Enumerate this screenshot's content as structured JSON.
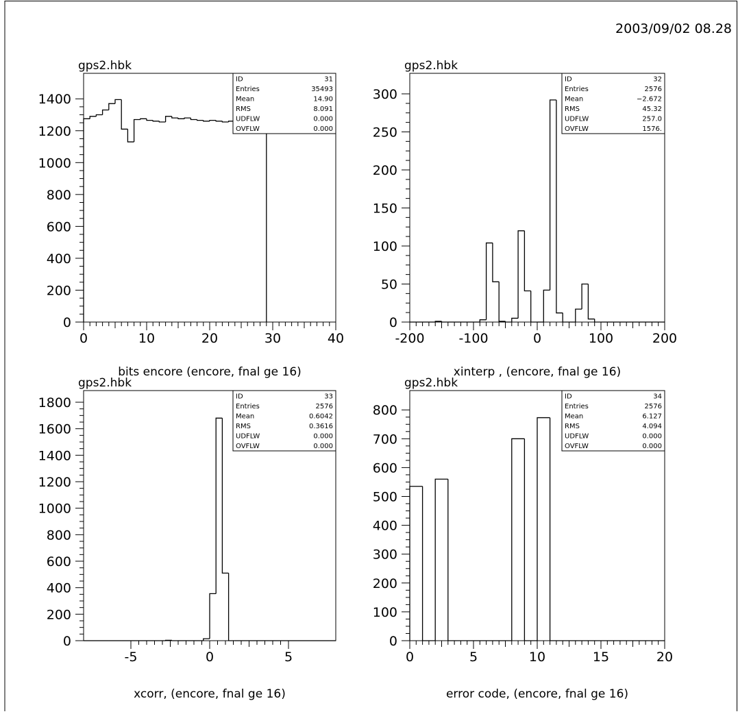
{
  "date": "2003/09/02  08.28",
  "chart_data": [
    {
      "type": "histogram",
      "title": "gps2.hbk",
      "xlabel": "bits  encore (encore, fnal ge 16)",
      "bins": [
        0,
        1,
        2,
        3,
        4,
        5,
        6,
        7,
        8,
        9,
        10,
        11,
        12,
        13,
        14,
        15,
        16,
        17,
        18,
        19,
        20,
        21,
        22,
        23,
        24,
        25,
        26,
        27,
        28,
        29
      ],
      "values": [
        1275,
        1290,
        1300,
        1330,
        1370,
        1395,
        1210,
        1130,
        1270,
        1275,
        1265,
        1260,
        1255,
        1290,
        1280,
        1275,
        1280,
        1270,
        1265,
        1260,
        1265,
        1260,
        1255,
        1260,
        1255,
        1250,
        1260,
        1255,
        1250
      ],
      "xlim": [
        0,
        40
      ],
      "ylim": [
        0,
        1560
      ],
      "xticks": [
        0,
        10,
        20,
        30,
        40
      ],
      "yticks": [
        0,
        200,
        400,
        600,
        800,
        1000,
        1200,
        1400
      ],
      "stats": [
        [
          "ID",
          "31"
        ],
        [
          "Entries",
          "35493"
        ],
        [
          "Mean",
          "14.90"
        ],
        [
          "RMS",
          "8.091"
        ],
        [
          "UDFLW",
          "0.000"
        ],
        [
          "OVFLW",
          "0.000"
        ]
      ]
    },
    {
      "type": "histogram",
      "title": "gps2.hbk",
      "xlabel": "xinterp , (encore, fnal ge 16)",
      "bins": [
        -200,
        -190,
        -180,
        -170,
        -160,
        -150,
        -140,
        -130,
        -120,
        -110,
        -100,
        -90,
        -80,
        -70,
        -60,
        -50,
        -40,
        -30,
        -20,
        -10,
        0,
        10,
        20,
        30,
        40,
        50,
        60,
        70,
        80,
        90,
        100,
        110,
        120,
        130,
        140,
        150,
        160,
        170,
        180,
        190,
        200
      ],
      "values": [
        0,
        0,
        0,
        0,
        1,
        0,
        0,
        0,
        0,
        0,
        0,
        3,
        104,
        53,
        1,
        0,
        5,
        120,
        41,
        0,
        0,
        42,
        292,
        12,
        0,
        0,
        17,
        50,
        4,
        0,
        0,
        0,
        0,
        0,
        0,
        0,
        0,
        0,
        0,
        0
      ],
      "xlim": [
        -200,
        200
      ],
      "ylim": [
        0,
        327
      ],
      "xticks": [
        -200,
        -100,
        0,
        100,
        200
      ],
      "yticks": [
        0,
        50,
        100,
        150,
        200,
        250,
        300
      ],
      "stats": [
        [
          "ID",
          "32"
        ],
        [
          "Entries",
          "2576"
        ],
        [
          "Mean",
          "−2.672"
        ],
        [
          "RMS",
          "45.32"
        ],
        [
          "UDFLW",
          "257.0"
        ],
        [
          "OVFLW",
          "1576."
        ]
      ]
    },
    {
      "type": "histogram",
      "title": "gps2.hbk",
      "xlabel": "xcorr, (encore, fnal ge 16)",
      "bins": [
        -8,
        -7.6,
        -7.2,
        -6.8,
        -6.4,
        -6,
        -5.6,
        -5.2,
        -4.8,
        -4.4,
        -4,
        -3.6,
        -3.2,
        -2.8,
        -2.4,
        -2,
        -1.6,
        -1.2,
        -0.8,
        -0.4,
        0,
        0.4,
        0.8,
        1.2,
        1.6,
        2,
        2.4,
        2.8,
        3.2,
        3.6,
        4,
        4.4,
        4.8,
        5.2,
        5.6,
        6,
        6.4,
        6.8,
        7.2,
        7.6,
        8
      ],
      "values": [
        0,
        0,
        0,
        0,
        0,
        0,
        0,
        0,
        0,
        0,
        0,
        0,
        0,
        3,
        0,
        0,
        0,
        0,
        0,
        15,
        355,
        1680,
        510,
        0,
        0,
        0,
        0,
        0,
        0,
        0,
        0,
        0,
        0,
        0,
        0,
        0,
        0,
        0,
        0,
        0
      ],
      "xlim": [
        -8,
        8
      ],
      "ylim": [
        0,
        1888
      ],
      "xticks": [
        -5,
        0,
        5
      ],
      "yticks": [
        0,
        200,
        400,
        600,
        800,
        1000,
        1200,
        1400,
        1600,
        1800
      ],
      "stats": [
        [
          "ID",
          "33"
        ],
        [
          "Entries",
          "2576"
        ],
        [
          "Mean",
          "0.6042"
        ],
        [
          "RMS",
          "0.3616"
        ],
        [
          "UDFLW",
          "0.000"
        ],
        [
          "OVFLW",
          "0.000"
        ]
      ]
    },
    {
      "type": "histogram",
      "title": "gps2.hbk",
      "xlabel": "error  code, (encore, fnal ge 16)",
      "bins": [
        0,
        1,
        2,
        3,
        4,
        5,
        6,
        7,
        8,
        9,
        10,
        11,
        12,
        13,
        14,
        15,
        16,
        17,
        18,
        19,
        20
      ],
      "values": [
        535,
        0,
        560,
        0,
        0,
        0,
        0,
        0,
        700,
        0,
        773,
        0,
        0,
        0,
        0,
        0,
        0,
        0,
        0,
        0
      ],
      "xlim": [
        0,
        20
      ],
      "ylim": [
        0,
        867
      ],
      "xticks": [
        0,
        5,
        10,
        15,
        20
      ],
      "yticks": [
        0,
        100,
        200,
        300,
        400,
        500,
        600,
        700,
        800
      ],
      "stats": [
        [
          "ID",
          "34"
        ],
        [
          "Entries",
          "2576"
        ],
        [
          "Mean",
          "6.127"
        ],
        [
          "RMS",
          "4.094"
        ],
        [
          "UDFLW",
          "0.000"
        ],
        [
          "OVFLW",
          "0.000"
        ]
      ]
    }
  ]
}
